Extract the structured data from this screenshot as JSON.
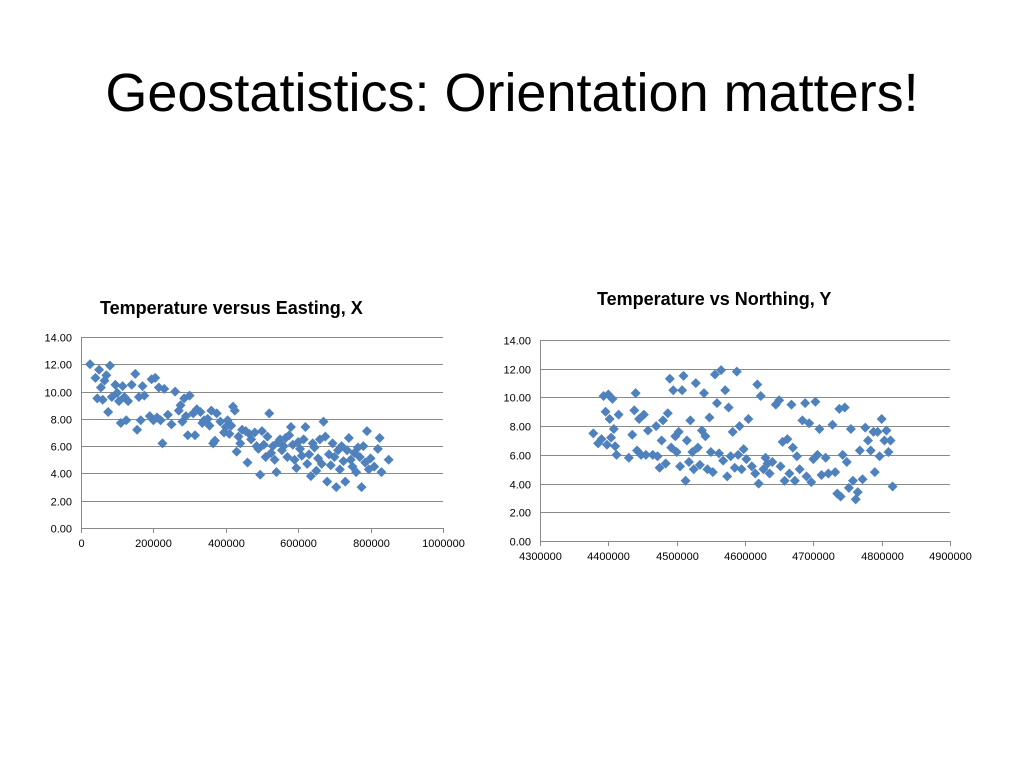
{
  "slide": {
    "title": "Geostatistics: Orientation matters!"
  },
  "colors": {
    "marker": "#4f81bd",
    "grid": "#8a8a8a"
  },
  "chart_data": [
    {
      "type": "scatter",
      "title": "Temperature versus Easting, X",
      "xlabel": "",
      "ylabel": "",
      "xlim": [
        0,
        1000000
      ],
      "ylim": [
        0,
        14
      ],
      "x_ticks": [
        "0",
        "200000",
        "400000",
        "600000",
        "800000",
        "1000000"
      ],
      "y_ticks": [
        "0.00",
        "2.00",
        "4.00",
        "6.00",
        "8.00",
        "10.00",
        "12.00",
        "14.00"
      ],
      "grid": true,
      "marker": "diamond",
      "points": [
        [
          25000,
          12.0
        ],
        [
          40000,
          11.0
        ],
        [
          45000,
          9.5
        ],
        [
          50000,
          11.6
        ],
        [
          55000,
          10.3
        ],
        [
          60000,
          9.4
        ],
        [
          65000,
          10.8
        ],
        [
          70000,
          11.2
        ],
        [
          75000,
          8.5
        ],
        [
          80000,
          11.9
        ],
        [
          85000,
          9.6
        ],
        [
          95000,
          10.5
        ],
        [
          100000,
          9.9
        ],
        [
          105000,
          9.3
        ],
        [
          110000,
          7.7
        ],
        [
          115000,
          10.4
        ],
        [
          120000,
          9.6
        ],
        [
          125000,
          7.9
        ],
        [
          130000,
          9.3
        ],
        [
          140000,
          10.5
        ],
        [
          150000,
          11.3
        ],
        [
          155000,
          7.2
        ],
        [
          160000,
          9.6
        ],
        [
          165000,
          7.9
        ],
        [
          170000,
          10.4
        ],
        [
          175000,
          9.7
        ],
        [
          190000,
          8.2
        ],
        [
          195000,
          10.9
        ],
        [
          200000,
          7.9
        ],
        [
          205000,
          11.0
        ],
        [
          210000,
          8.1
        ],
        [
          215000,
          10.3
        ],
        [
          220000,
          7.9
        ],
        [
          225000,
          6.2
        ],
        [
          230000,
          10.2
        ],
        [
          240000,
          8.3
        ],
        [
          250000,
          7.6
        ],
        [
          260000,
          10.0
        ],
        [
          270000,
          8.6
        ],
        [
          275000,
          9.0
        ],
        [
          280000,
          7.8
        ],
        [
          285000,
          9.5
        ],
        [
          290000,
          8.2
        ],
        [
          295000,
          6.8
        ],
        [
          300000,
          9.7
        ],
        [
          310000,
          8.4
        ],
        [
          315000,
          6.8
        ],
        [
          320000,
          8.7
        ],
        [
          330000,
          8.5
        ],
        [
          335000,
          7.7
        ],
        [
          340000,
          7.9
        ],
        [
          350000,
          8.0
        ],
        [
          355000,
          7.5
        ],
        [
          360000,
          8.6
        ],
        [
          365000,
          6.2
        ],
        [
          370000,
          6.4
        ],
        [
          375000,
          8.4
        ],
        [
          385000,
          7.8
        ],
        [
          395000,
          7.0
        ],
        [
          400000,
          7.4
        ],
        [
          405000,
          7.9
        ],
        [
          410000,
          6.9
        ],
        [
          415000,
          7.5
        ],
        [
          420000,
          8.9
        ],
        [
          425000,
          8.6
        ],
        [
          430000,
          5.6
        ],
        [
          435000,
          6.7
        ],
        [
          440000,
          6.2
        ],
        [
          445000,
          7.2
        ],
        [
          455000,
          7.1
        ],
        [
          460000,
          4.8
        ],
        [
          465000,
          6.9
        ],
        [
          470000,
          6.5
        ],
        [
          480000,
          7.0
        ],
        [
          485000,
          6.0
        ],
        [
          490000,
          5.8
        ],
        [
          495000,
          3.9
        ],
        [
          500000,
          7.1
        ],
        [
          505000,
          6.1
        ],
        [
          510000,
          5.2
        ],
        [
          515000,
          6.7
        ],
        [
          520000,
          8.4
        ],
        [
          525000,
          5.5
        ],
        [
          530000,
          6.0
        ],
        [
          535000,
          5.0
        ],
        [
          540000,
          4.1
        ],
        [
          545000,
          6.3
        ],
        [
          550000,
          6.5
        ],
        [
          555000,
          5.7
        ],
        [
          560000,
          6.0
        ],
        [
          565000,
          6.6
        ],
        [
          570000,
          5.2
        ],
        [
          575000,
          6.8
        ],
        [
          580000,
          7.4
        ],
        [
          585000,
          6.1
        ],
        [
          590000,
          5.0
        ],
        [
          595000,
          4.4
        ],
        [
          600000,
          6.3
        ],
        [
          605000,
          5.8
        ],
        [
          610000,
          5.3
        ],
        [
          615000,
          6.5
        ],
        [
          620000,
          7.4
        ],
        [
          625000,
          4.7
        ],
        [
          630000,
          5.4
        ],
        [
          635000,
          3.8
        ],
        [
          640000,
          6.2
        ],
        [
          645000,
          5.9
        ],
        [
          650000,
          4.2
        ],
        [
          655000,
          5.1
        ],
        [
          660000,
          6.5
        ],
        [
          665000,
          4.7
        ],
        [
          670000,
          7.8
        ],
        [
          675000,
          6.7
        ],
        [
          680000,
          3.4
        ],
        [
          685000,
          5.4
        ],
        [
          690000,
          4.6
        ],
        [
          695000,
          6.2
        ],
        [
          700000,
          5.2
        ],
        [
          705000,
          3.0
        ],
        [
          710000,
          5.7
        ],
        [
          715000,
          4.3
        ],
        [
          720000,
          6.0
        ],
        [
          725000,
          4.9
        ],
        [
          730000,
          3.4
        ],
        [
          735000,
          5.7
        ],
        [
          740000,
          6.6
        ],
        [
          745000,
          5.0
        ],
        [
          750000,
          4.5
        ],
        [
          755000,
          5.5
        ],
        [
          760000,
          4.1
        ],
        [
          765000,
          5.9
        ],
        [
          770000,
          5.2
        ],
        [
          775000,
          3.0
        ],
        [
          780000,
          6.0
        ],
        [
          785000,
          4.8
        ],
        [
          790000,
          7.1
        ],
        [
          795000,
          4.3
        ],
        [
          800000,
          5.1
        ],
        [
          810000,
          4.5
        ],
        [
          820000,
          5.8
        ],
        [
          825000,
          6.6
        ],
        [
          830000,
          4.1
        ],
        [
          850000,
          5.0
        ]
      ]
    },
    {
      "type": "scatter",
      "title": "Temperature vs Northing, Y",
      "xlabel": "",
      "ylabel": "",
      "xlim": [
        4300000,
        4900000
      ],
      "ylim": [
        0,
        14
      ],
      "x_ticks": [
        "4300000",
        "4400000",
        "4500000",
        "4600000",
        "4700000",
        "4800000",
        "4900000"
      ],
      "y_ticks": [
        "0.00",
        "2.00",
        "4.00",
        "6.00",
        "8.00",
        "10.00",
        "12.00",
        "14.00"
      ],
      "grid": true,
      "marker": "diamond",
      "points": [
        [
          4378000,
          7.5
        ],
        [
          4385000,
          6.8
        ],
        [
          4390000,
          7.1
        ],
        [
          4393000,
          10.1
        ],
        [
          4396000,
          9.0
        ],
        [
          4398000,
          6.7
        ],
        [
          4400000,
          10.2
        ],
        [
          4402000,
          8.5
        ],
        [
          4404000,
          7.2
        ],
        [
          4406000,
          9.9
        ],
        [
          4408000,
          7.8
        ],
        [
          4410000,
          6.6
        ],
        [
          4412000,
          6.0
        ],
        [
          4415000,
          8.8
        ],
        [
          4430000,
          5.8
        ],
        [
          4435000,
          7.4
        ],
        [
          4438000,
          9.1
        ],
        [
          4440000,
          10.3
        ],
        [
          4442000,
          6.3
        ],
        [
          4445000,
          8.5
        ],
        [
          4448000,
          6.0
        ],
        [
          4452000,
          8.8
        ],
        [
          4455000,
          6.0
        ],
        [
          4458000,
          7.7
        ],
        [
          4465000,
          6.0
        ],
        [
          4470000,
          8.0
        ],
        [
          4472000,
          5.9
        ],
        [
          4475000,
          5.1
        ],
        [
          4478000,
          7.0
        ],
        [
          4480000,
          8.4
        ],
        [
          4484000,
          5.4
        ],
        [
          4487000,
          8.9
        ],
        [
          4490000,
          11.3
        ],
        [
          4492000,
          6.5
        ],
        [
          4495000,
          10.5
        ],
        [
          4498000,
          7.3
        ],
        [
          4500000,
          6.2
        ],
        [
          4503000,
          7.6
        ],
        [
          4505000,
          5.2
        ],
        [
          4508000,
          10.5
        ],
        [
          4510000,
          11.5
        ],
        [
          4513000,
          4.2
        ],
        [
          4515000,
          7.0
        ],
        [
          4518000,
          5.5
        ],
        [
          4520000,
          8.4
        ],
        [
          4523000,
          6.2
        ],
        [
          4525000,
          5.0
        ],
        [
          4528000,
          11.0
        ],
        [
          4531000,
          6.5
        ],
        [
          4534000,
          5.3
        ],
        [
          4537000,
          7.7
        ],
        [
          4540000,
          10.3
        ],
        [
          4542000,
          7.3
        ],
        [
          4545000,
          5.0
        ],
        [
          4548000,
          8.6
        ],
        [
          4550000,
          6.2
        ],
        [
          4553000,
          4.8
        ],
        [
          4556000,
          11.6
        ],
        [
          4559000,
          9.6
        ],
        [
          4562000,
          6.1
        ],
        [
          4565000,
          11.9
        ],
        [
          4568000,
          5.6
        ],
        [
          4571000,
          10.5
        ],
        [
          4574000,
          4.5
        ],
        [
          4576000,
          9.3
        ],
        [
          4579000,
          5.9
        ],
        [
          4582000,
          7.6
        ],
        [
          4585000,
          5.1
        ],
        [
          4588000,
          11.8
        ],
        [
          4590000,
          6.0
        ],
        [
          4592000,
          8.0
        ],
        [
          4595000,
          5.0
        ],
        [
          4598000,
          6.4
        ],
        [
          4602000,
          5.7
        ],
        [
          4605000,
          8.5
        ],
        [
          4610000,
          5.2
        ],
        [
          4615000,
          4.7
        ],
        [
          4618000,
          10.9
        ],
        [
          4620000,
          4.0
        ],
        [
          4623000,
          10.1
        ],
        [
          4627000,
          5.0
        ],
        [
          4630000,
          5.8
        ],
        [
          4633000,
          5.4
        ],
        [
          4636000,
          4.7
        ],
        [
          4640000,
          5.5
        ],
        [
          4645000,
          9.5
        ],
        [
          4650000,
          9.8
        ],
        [
          4652000,
          5.2
        ],
        [
          4655000,
          6.9
        ],
        [
          4658000,
          4.2
        ],
        [
          4662000,
          7.1
        ],
        [
          4665000,
          4.7
        ],
        [
          4668000,
          9.5
        ],
        [
          4670000,
          6.5
        ],
        [
          4673000,
          4.2
        ],
        [
          4676000,
          5.9
        ],
        [
          4680000,
          5.0
        ],
        [
          4684000,
          8.4
        ],
        [
          4688000,
          9.6
        ],
        [
          4690000,
          4.5
        ],
        [
          4694000,
          8.2
        ],
        [
          4697000,
          4.1
        ],
        [
          4700000,
          5.7
        ],
        [
          4703000,
          9.7
        ],
        [
          4706000,
          6.0
        ],
        [
          4709000,
          7.8
        ],
        [
          4712000,
          4.6
        ],
        [
          4718000,
          5.8
        ],
        [
          4722000,
          4.7
        ],
        [
          4728000,
          8.1
        ],
        [
          4732000,
          4.8
        ],
        [
          4735000,
          3.3
        ],
        [
          4738000,
          9.2
        ],
        [
          4740000,
          3.1
        ],
        [
          4743000,
          6.0
        ],
        [
          4746000,
          9.3
        ],
        [
          4749000,
          5.5
        ],
        [
          4752000,
          3.7
        ],
        [
          4755000,
          7.8
        ],
        [
          4758000,
          4.2
        ],
        [
          4762000,
          2.9
        ],
        [
          4765000,
          3.4
        ],
        [
          4768000,
          6.3
        ],
        [
          4772000,
          4.3
        ],
        [
          4776000,
          7.9
        ],
        [
          4780000,
          7.0
        ],
        [
          4784000,
          6.3
        ],
        [
          4788000,
          7.6
        ],
        [
          4790000,
          4.8
        ],
        [
          4794000,
          7.6
        ],
        [
          4797000,
          5.9
        ],
        [
          4800000,
          8.5
        ],
        [
          4804000,
          7.0
        ],
        [
          4807000,
          7.7
        ],
        [
          4810000,
          6.2
        ],
        [
          4813000,
          7.0
        ],
        [
          4816000,
          3.8
        ]
      ]
    }
  ]
}
